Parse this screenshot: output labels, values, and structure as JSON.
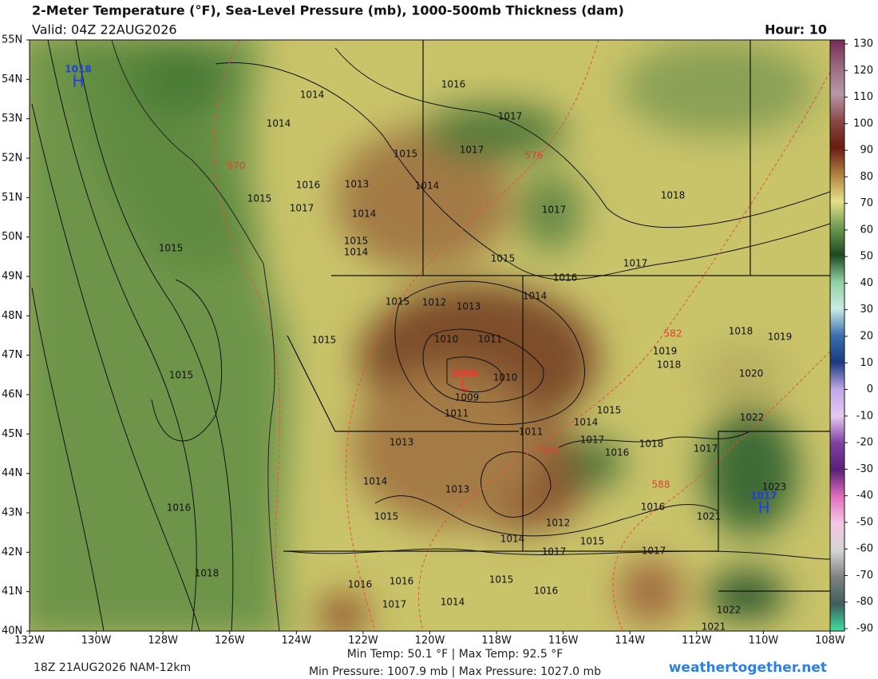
{
  "header": {
    "title": "2-Meter Temperature (°F), Sea-Level Pressure (mb), 1000-500mb Thickness (dam)",
    "valid": "Valid: 04Z 22AUG2026",
    "hour": "Hour: 10"
  },
  "map": {
    "lat_labels": [
      "55N",
      "54N",
      "53N",
      "52N",
      "51N",
      "50N",
      "49N",
      "48N",
      "47N",
      "46N",
      "45N",
      "44N",
      "43N",
      "42N",
      "41N",
      "40N"
    ],
    "lon_labels": [
      "132W",
      "130W",
      "128W",
      "126W",
      "124W",
      "122W",
      "120W",
      "118W",
      "116W",
      "114W",
      "112W",
      "110W",
      "108W"
    ],
    "isobar_labels": [
      "1014",
      "1014",
      "1016",
      "1017",
      "1017",
      "1015",
      "1013",
      "1014",
      "1016",
      "1017",
      "1015",
      "1014",
      "1017",
      "1018",
      "1015",
      "1014",
      "1015",
      "1015",
      "1017",
      "1016",
      "1015",
      "1012",
      "1013",
      "1014",
      "1018",
      "1019",
      "1019",
      "1018",
      "1010",
      "1011",
      "1015",
      "1015",
      "1010",
      "1009",
      "1011",
      "1020",
      "1014",
      "1015",
      "1022",
      "1011",
      "1013",
      "1017",
      "1016",
      "1018",
      "1017",
      "1014",
      "1013",
      "1023",
      "1016",
      "1016",
      "1015",
      "1021",
      "1012",
      "1014",
      "1015",
      "1017",
      "1017",
      "1018",
      "1015",
      "1016",
      "1016",
      "1016",
      "1014",
      "1017",
      "1022",
      "1021"
    ],
    "thickness_labels": [
      "576",
      "570",
      "582",
      "588",
      "588"
    ],
    "highs": [
      {
        "pressure": "1018",
        "label": "H"
      },
      {
        "pressure": "1017",
        "label": "H"
      }
    ],
    "lows": [
      {
        "pressure": "1008",
        "label": "L"
      }
    ]
  },
  "colorbar": {
    "ticks": [
      130,
      120,
      110,
      100,
      90,
      80,
      70,
      60,
      50,
      40,
      30,
      20,
      10,
      0,
      -10,
      -20,
      -30,
      -40,
      -50,
      -60,
      -70,
      -80,
      -90
    ],
    "colors": [
      "#7a2a55",
      "#9a6a80",
      "#b898a8",
      "#8a4a48",
      "#6b1a10",
      "#b08040",
      "#e6e08a",
      "#6a9a50",
      "#1d4a20",
      "#8fd0a0",
      "#c8ece4",
      "#3a70b0",
      "#1a3a80",
      "#c0a8e8",
      "#e6c8f0",
      "#8040a0",
      "#5a2078",
      "#e070c0",
      "#f4c8e4",
      "#d4d4d4",
      "#808080",
      "#3e5e5e",
      "#40e0a0"
    ]
  },
  "footer": {
    "run": "18Z 21AUG2026 NAM-12km",
    "temps": "Min Temp:  50.1 °F | Max Temp:  92.5 °F",
    "pressures": "Min Pressure: 1007.9 mb | Max Pressure: 1027.0 mb",
    "site": "weathertogether.net"
  }
}
